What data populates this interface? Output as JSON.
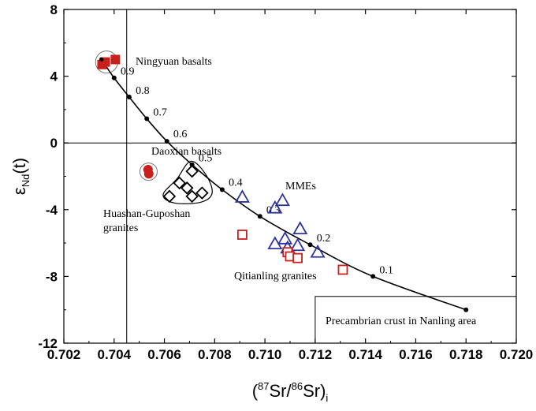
{
  "chart_data": {
    "type": "scatter",
    "title": "",
    "xlabel": {
      "pre": "(",
      "sup1": "87",
      "mid": "Sr/",
      "sup2": "86",
      "post": "Sr)",
      "sub": "i"
    },
    "ylabel": {
      "main": "ε",
      "sub": "Nd",
      "post": "(t)"
    },
    "xlim": [
      0.702,
      0.72
    ],
    "ylim": [
      -12,
      8
    ],
    "xticks": [
      "0.702",
      "0.704",
      "0.706",
      "0.708",
      "0.710",
      "0.712",
      "0.714",
      "0.716",
      "0.718",
      "0.720"
    ],
    "yticks": [
      "-12",
      "-8",
      "-4",
      "0",
      "4",
      "8"
    ],
    "ref_lines": {
      "x": 0.7045,
      "y": 0
    },
    "mixing_curve": {
      "points": [
        {
          "x": 0.7035,
          "y": 5.0
        },
        {
          "x": 0.704,
          "y": 3.9
        },
        {
          "x": 0.7046,
          "y": 2.75
        },
        {
          "x": 0.7053,
          "y": 1.45
        },
        {
          "x": 0.7061,
          "y": 0.1
        },
        {
          "x": 0.7071,
          "y": -1.3
        },
        {
          "x": 0.7083,
          "y": -2.8
        },
        {
          "x": 0.7098,
          "y": -4.4
        },
        {
          "x": 0.7118,
          "y": -6.1
        },
        {
          "x": 0.7143,
          "y": -8.0
        },
        {
          "x": 0.718,
          "y": -10.0
        }
      ],
      "labels": [
        {
          "text": "0.9",
          "x": 0.7041,
          "y": 3.9
        },
        {
          "text": "0.8",
          "x": 0.7047,
          "y": 2.75
        },
        {
          "text": "0.7",
          "x": 0.7054,
          "y": 1.45
        },
        {
          "text": "0.6",
          "x": 0.7062,
          "y": 0.15
        },
        {
          "text": "0.5",
          "x": 0.7072,
          "y": -1.3
        },
        {
          "text": "0.4",
          "x": 0.7084,
          "y": -2.75
        },
        {
          "text": "0.3",
          "x": 0.7099,
          "y": -4.4
        },
        {
          "text": "0.2",
          "x": 0.7119,
          "y": -6.1
        },
        {
          "text": "0.1",
          "x": 0.7144,
          "y": -8.0
        }
      ]
    },
    "series": [
      {
        "name": "Ningyuan basalts",
        "marker": "filled-square",
        "color": "#c8201d",
        "points": [
          {
            "x": 0.70352,
            "y": 4.7
          },
          {
            "x": 0.70365,
            "y": 4.85
          },
          {
            "x": 0.70405,
            "y": 5.0
          }
        ]
      },
      {
        "name": "Daoxian basalts",
        "marker": "filled-circle",
        "color": "#c8201d",
        "points": [
          {
            "x": 0.70535,
            "y": -1.6
          },
          {
            "x": 0.70538,
            "y": -1.85
          }
        ]
      },
      {
        "name": "Huashan-Guposhan granites",
        "marker": "open-diamond",
        "color": "#000000",
        "points": [
          {
            "x": 0.7062,
            "y": -3.2
          },
          {
            "x": 0.7066,
            "y": -2.4
          },
          {
            "x": 0.7069,
            "y": -2.7
          },
          {
            "x": 0.7071,
            "y": -1.7
          },
          {
            "x": 0.7071,
            "y": -3.2
          },
          {
            "x": 0.7075,
            "y": -3.0
          }
        ]
      },
      {
        "name": "MMEs",
        "marker": "open-triangle",
        "color": "#2e35a0",
        "points": [
          {
            "x": 0.7091,
            "y": -3.25
          },
          {
            "x": 0.7104,
            "y": -3.9
          },
          {
            "x": 0.7107,
            "y": -3.45
          },
          {
            "x": 0.7104,
            "y": -6.05
          },
          {
            "x": 0.7108,
            "y": -5.75
          },
          {
            "x": 0.7109,
            "y": -6.3
          },
          {
            "x": 0.7113,
            "y": -6.15
          },
          {
            "x": 0.7114,
            "y": -5.15
          },
          {
            "x": 0.7121,
            "y": -6.55
          }
        ]
      },
      {
        "name": "Qitianling granites",
        "marker": "open-square",
        "color": "#c8201d",
        "points": [
          {
            "x": 0.7091,
            "y": -5.5
          },
          {
            "x": 0.7109,
            "y": -6.55
          },
          {
            "x": 0.711,
            "y": -6.8
          },
          {
            "x": 0.7113,
            "y": -6.9
          },
          {
            "x": 0.7131,
            "y": -7.6
          }
        ]
      }
    ],
    "annotations": {
      "ningyuan": "Ningyuan basalts",
      "daoxian": "Daoxian basalts",
      "huashan_1": "Huashan-Guposhan",
      "huashan_2": "granites",
      "mmes": "MMEs",
      "qitianling": "Qitianling granites",
      "precambrian": "Precambrian crust in Nanling area"
    },
    "precambrian_box": {
      "x_from": 0.712,
      "y_from": -9.2
    }
  }
}
